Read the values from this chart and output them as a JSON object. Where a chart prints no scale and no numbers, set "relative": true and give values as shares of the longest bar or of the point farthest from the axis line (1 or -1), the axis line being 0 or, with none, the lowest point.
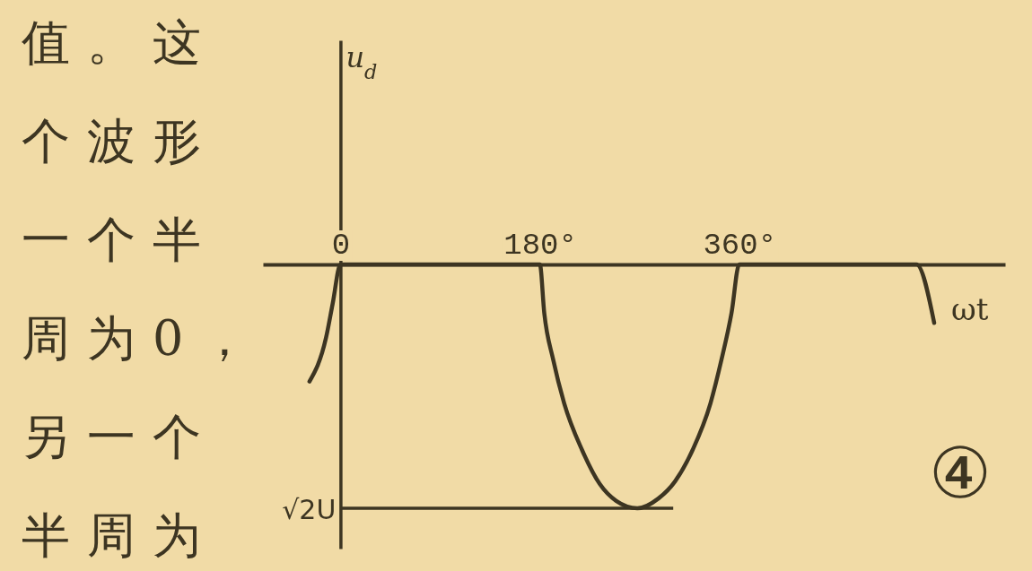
{
  "chart_data": {
    "type": "line",
    "xlabel": "ωt",
    "relative": true,
    "x": [
      -28,
      -13,
      -7,
      0,
      180,
      184,
      192,
      202,
      218,
      234,
      249,
      268,
      287,
      302,
      318,
      334,
      344,
      353,
      360,
      520,
      536
    ],
    "values": [
      -0.48,
      -0.3,
      -0.16,
      0,
      0,
      -0.2,
      -0.39,
      -0.57,
      -0.76,
      -0.9,
      -0.97,
      -1,
      -0.96,
      -0.89,
      -0.76,
      -0.57,
      -0.39,
      -0.2,
      0,
      0,
      -0.24
    ],
    "color": "#3d3522",
    "xlim": [
      -70,
      600
    ],
    "xticks": [
      0,
      {
        "value": 180,
        "label": "180°"
      },
      {
        "value": 360,
        "label": "360°"
      }
    ],
    "ref_lines": [
      {
        "axis": "y",
        "value": -1,
        "label": "√2U"
      }
    ],
    "annotations": [
      "u$_{d}$",
      "值。这",
      "个波形",
      "一个半",
      "周为0，",
      "另一个",
      "半周为",
      "④"
    ]
  }
}
